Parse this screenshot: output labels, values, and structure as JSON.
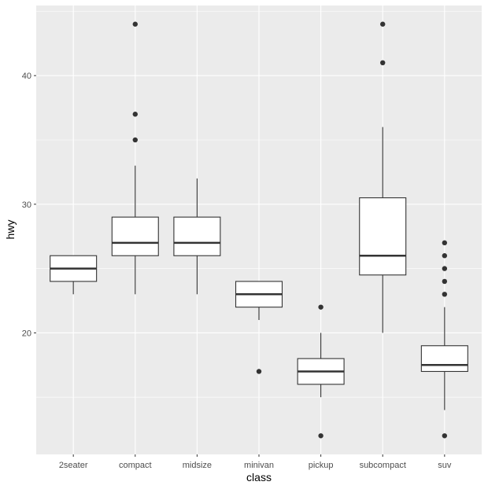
{
  "chart_data": {
    "type": "box",
    "xlabel": "class",
    "ylabel": "hwy",
    "ylim": [
      10.55,
      45.45
    ],
    "yticks": [
      20,
      30,
      40
    ],
    "grid": true,
    "colors": {
      "panel": "#ebebeb",
      "grid": "#ffffff",
      "box_fill": "#ffffff",
      "box_line": "#333333",
      "tick_text": "#4d4d4d"
    },
    "categories": [
      "2seater",
      "compact",
      "midsize",
      "minivan",
      "pickup",
      "subcompact",
      "suv"
    ],
    "boxes": [
      {
        "lower": 23,
        "q1": 24,
        "median": 25,
        "q3": 26,
        "upper": 26,
        "outliers": []
      },
      {
        "lower": 23,
        "q1": 26,
        "median": 27,
        "q3": 29,
        "upper": 33,
        "outliers": [
          35,
          37,
          44
        ]
      },
      {
        "lower": 23,
        "q1": 26,
        "median": 27,
        "q3": 29,
        "upper": 32,
        "outliers": []
      },
      {
        "lower": 21,
        "q1": 22,
        "median": 23,
        "q3": 24,
        "upper": 24,
        "outliers": [
          17
        ]
      },
      {
        "lower": 15,
        "q1": 16,
        "median": 17,
        "q3": 18,
        "upper": 20,
        "outliers": [
          12,
          22
        ]
      },
      {
        "lower": 20,
        "q1": 24.5,
        "median": 26,
        "q3": 30.5,
        "upper": 36,
        "outliers": [
          41,
          44
        ]
      },
      {
        "lower": 14,
        "q1": 17,
        "median": 17.5,
        "q3": 19,
        "upper": 22,
        "outliers": [
          12,
          23,
          24,
          25,
          26,
          27
        ]
      }
    ]
  }
}
